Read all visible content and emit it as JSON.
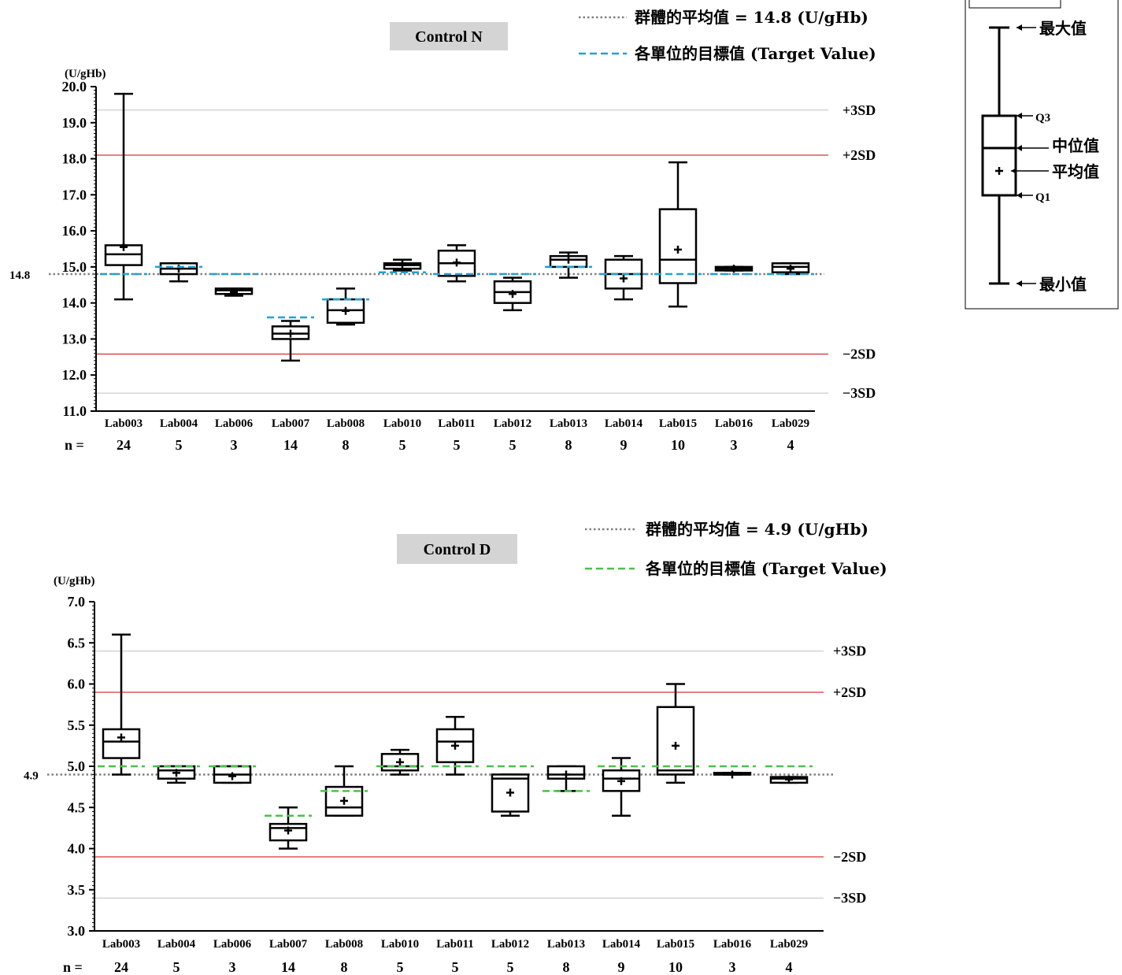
{
  "chart_data": [
    {
      "type": "boxplot",
      "title": "Control N",
      "ylabel": "(U/gHb)",
      "ylim": [
        11.0,
        20.0
      ],
      "yticks": [
        11.0,
        12.0,
        13.0,
        14.0,
        15.0,
        16.0,
        17.0,
        18.0,
        19.0,
        20.0
      ],
      "ytick_labels": [
        "11.0",
        "12.0",
        "13.0",
        "14.0",
        "15.0",
        "16.0",
        "17.0",
        "18.0",
        "19.0",
        "20.0"
      ],
      "n_label": "n =",
      "group_mean": {
        "value": 14.8,
        "label": "14.8",
        "legend": "群體的平均值 = 14.8 (U/gHb)",
        "color": "#808080"
      },
      "target_legend": "各單位的目標值 (Target Value)",
      "target_color": "#1fa3d4",
      "ref_lines": [
        {
          "label": "+3SD",
          "value": 19.35,
          "color": "#c0c0c0"
        },
        {
          "label": "+2SD",
          "value": 18.1,
          "color": "#cc0000"
        },
        {
          "label": "−2SD",
          "value": 12.58,
          "color": "#cc0000"
        },
        {
          "label": "−3SD",
          "value": 11.5,
          "color": "#c0c0c0"
        }
      ],
      "labs": [
        {
          "name": "Lab003",
          "n": "24",
          "min": 14.1,
          "q1": 15.05,
          "median": 15.35,
          "q3": 15.6,
          "max": 19.8,
          "mean": 15.55,
          "target": 14.8
        },
        {
          "name": "Lab004",
          "n": "5",
          "min": 14.6,
          "q1": 14.8,
          "median": 14.95,
          "q3": 15.1,
          "max": 15.1,
          "mean": 14.95,
          "target": 15.0
        },
        {
          "name": "Lab006",
          "n": "3",
          "min": 14.2,
          "q1": 14.25,
          "median": 14.35,
          "q3": 14.4,
          "max": 14.4,
          "mean": 14.3,
          "target": 14.8
        },
        {
          "name": "Lab007",
          "n": "14",
          "min": 12.4,
          "q1": 13.0,
          "median": 13.15,
          "q3": 13.35,
          "max": 13.5,
          "mean": 13.15,
          "target": 13.6
        },
        {
          "name": "Lab008",
          "n": "8",
          "min": 13.4,
          "q1": 13.45,
          "median": 13.8,
          "q3": 14.1,
          "max": 14.4,
          "mean": 13.78,
          "target": 14.1
        },
        {
          "name": "Lab010",
          "n": "5",
          "min": 14.9,
          "q1": 14.95,
          "median": 15.05,
          "q3": 15.1,
          "max": 15.2,
          "mean": 15.05,
          "target": 14.85
        },
        {
          "name": "Lab011",
          "n": "5",
          "min": 14.6,
          "q1": 14.75,
          "median": 15.1,
          "q3": 15.45,
          "max": 15.6,
          "mean": 15.12,
          "target": 14.8
        },
        {
          "name": "Lab012",
          "n": "5",
          "min": 13.8,
          "q1": 14.0,
          "median": 14.3,
          "q3": 14.6,
          "max": 14.7,
          "mean": 14.25,
          "target": 14.8
        },
        {
          "name": "Lab013",
          "n": "8",
          "min": 14.7,
          "q1": 15.0,
          "median": 15.2,
          "q3": 15.3,
          "max": 15.4,
          "mean": 15.2,
          "target": 15.0
        },
        {
          "name": "Lab014",
          "n": "9",
          "min": 14.1,
          "q1": 14.4,
          "median": 14.8,
          "q3": 15.2,
          "max": 15.3,
          "mean": 14.68,
          "target": 14.8
        },
        {
          "name": "Lab015",
          "n": "10",
          "min": 13.9,
          "q1": 14.55,
          "median": 15.2,
          "q3": 16.6,
          "max": 17.9,
          "mean": 15.48,
          "target": 14.8
        },
        {
          "name": "Lab016",
          "n": "3",
          "min": 14.9,
          "q1": 14.9,
          "median": 14.95,
          "q3": 15.0,
          "max": 15.0,
          "mean": 14.95,
          "target": 14.8
        },
        {
          "name": "Lab029",
          "n": "4",
          "min": 14.8,
          "q1": 14.85,
          "median": 15.0,
          "q3": 15.1,
          "max": 15.1,
          "mean": 14.95,
          "target": 14.8
        }
      ]
    },
    {
      "type": "boxplot",
      "title": "Control D",
      "ylabel": "(U/gHb)",
      "ylim": [
        3.0,
        7.0
      ],
      "yticks": [
        3.0,
        3.5,
        4.0,
        4.5,
        5.0,
        5.5,
        6.0,
        6.5,
        7.0
      ],
      "ytick_labels": [
        "3.0",
        "3.5",
        "4.0",
        "4.5",
        "5.0",
        "5.5",
        "6.0",
        "6.5",
        "7.0"
      ],
      "n_label": "n =",
      "group_mean": {
        "value": 4.9,
        "label": "4.9",
        "legend": "群體的平均值 = 4.9 (U/gHb)",
        "color": "#808080"
      },
      "target_legend": "各單位的目標值 (Target Value)",
      "target_color": "#4cc04c",
      "ref_lines": [
        {
          "label": "+3SD",
          "value": 6.4,
          "color": "#c0c0c0"
        },
        {
          "label": "+2SD",
          "value": 5.9,
          "color": "#cc0000"
        },
        {
          "label": "−2SD",
          "value": 3.9,
          "color": "#cc0000"
        },
        {
          "label": "−3SD",
          "value": 3.4,
          "color": "#c0c0c0"
        }
      ],
      "labs": [
        {
          "name": "Lab003",
          "n": "24",
          "min": 4.9,
          "q1": 5.1,
          "median": 5.3,
          "q3": 5.45,
          "max": 6.6,
          "mean": 5.35,
          "target": 5.0
        },
        {
          "name": "Lab004",
          "n": "5",
          "min": 4.8,
          "q1": 4.85,
          "median": 4.95,
          "q3": 5.0,
          "max": 5.0,
          "mean": 4.92,
          "target": 5.0
        },
        {
          "name": "Lab006",
          "n": "3",
          "min": 4.8,
          "q1": 4.8,
          "median": 4.9,
          "q3": 5.0,
          "max": 5.0,
          "mean": 4.88,
          "target": 5.0
        },
        {
          "name": "Lab007",
          "n": "14",
          "min": 4.0,
          "q1": 4.1,
          "median": 4.25,
          "q3": 4.3,
          "max": 4.5,
          "mean": 4.22,
          "target": 4.4
        },
        {
          "name": "Lab008",
          "n": "8",
          "min": 4.4,
          "q1": 4.4,
          "median": 4.5,
          "q3": 4.75,
          "max": 5.0,
          "mean": 4.58,
          "target": 4.7
        },
        {
          "name": "Lab010",
          "n": "5",
          "min": 4.9,
          "q1": 4.95,
          "median": 5.0,
          "q3": 5.15,
          "max": 5.2,
          "mean": 5.05,
          "target": 5.0
        },
        {
          "name": "Lab011",
          "n": "5",
          "min": 4.9,
          "q1": 5.05,
          "median": 5.3,
          "q3": 5.45,
          "max": 5.6,
          "mean": 5.25,
          "target": 5.0
        },
        {
          "name": "Lab012",
          "n": "5",
          "min": 4.4,
          "q1": 4.45,
          "median": 4.85,
          "q3": 4.9,
          "max": 4.9,
          "mean": 4.68,
          "target": 5.0
        },
        {
          "name": "Lab013",
          "n": "8",
          "min": 4.7,
          "q1": 4.85,
          "median": 4.9,
          "q3": 5.0,
          "max": 5.0,
          "mean": 4.9,
          "target": 4.7
        },
        {
          "name": "Lab014",
          "n": "9",
          "min": 4.4,
          "q1": 4.7,
          "median": 4.85,
          "q3": 4.95,
          "max": 5.1,
          "mean": 4.82,
          "target": 5.0
        },
        {
          "name": "Lab015",
          "n": "10",
          "min": 4.8,
          "q1": 4.9,
          "median": 4.95,
          "q3": 5.72,
          "max": 6.0,
          "mean": 5.25,
          "target": 5.0
        },
        {
          "name": "Lab016",
          "n": "3",
          "min": 4.9,
          "q1": 4.9,
          "median": 4.9,
          "q3": 4.92,
          "max": 4.92,
          "mean": 4.9,
          "target": 5.0
        },
        {
          "name": "Lab029",
          "n": "4",
          "min": 4.8,
          "q1": 4.8,
          "median": 4.85,
          "q3": 4.87,
          "max": 4.87,
          "mean": 4.84,
          "target": 5.0
        }
      ]
    }
  ],
  "key_legend": {
    "max": "最大值",
    "q3": "Q3",
    "median": "中位值",
    "mean": "平均值",
    "q1": "Q1",
    "min": "最小值"
  }
}
